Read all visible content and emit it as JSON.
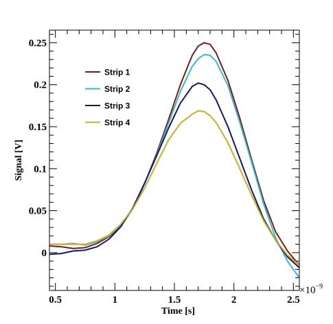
{
  "chart_data": {
    "type": "line",
    "xlabel": "Time [s]",
    "ylabel": "Signal [V]",
    "x_exponent_base": "×10",
    "x_exponent_power": "−9",
    "xlim": [
      0.45,
      2.55
    ],
    "ylim": [
      -0.045,
      0.265
    ],
    "x_ticks": [
      0.5,
      1,
      1.5,
      2,
      2.5
    ],
    "x_tick_labels": [
      "0.5",
      "1",
      "1.5",
      "2",
      "2.5"
    ],
    "y_ticks": [
      0,
      0.05,
      0.1,
      0.15,
      0.2,
      0.25
    ],
    "y_tick_labels": [
      "0",
      "0.05",
      "0.1",
      "0.15",
      "0.2",
      "0.25"
    ],
    "grid": false,
    "legend_position": "top-left",
    "x": [
      0.45,
      0.55,
      0.65,
      0.75,
      0.85,
      0.95,
      1.05,
      1.15,
      1.25,
      1.35,
      1.45,
      1.55,
      1.65,
      1.7,
      1.75,
      1.8,
      1.85,
      1.95,
      2.05,
      2.15,
      2.25,
      2.35,
      2.45,
      2.55
    ],
    "series": [
      {
        "name": "Strip 1",
        "color": "#7a1a1a",
        "values": [
          0.008,
          0.007,
          0.005,
          0.006,
          0.011,
          0.019,
          0.032,
          0.052,
          0.082,
          0.118,
          0.158,
          0.2,
          0.235,
          0.246,
          0.25,
          0.248,
          0.238,
          0.205,
          0.16,
          0.11,
          0.062,
          0.025,
          0.002,
          -0.015
        ]
      },
      {
        "name": "Strip 2",
        "color": "#36b8d0",
        "values": [
          0.01,
          0.01,
          0.011,
          0.009,
          0.013,
          0.02,
          0.033,
          0.053,
          0.082,
          0.116,
          0.154,
          0.192,
          0.222,
          0.231,
          0.236,
          0.235,
          0.228,
          0.199,
          0.155,
          0.107,
          0.058,
          0.018,
          -0.01,
          -0.03
        ]
      },
      {
        "name": "Strip 3",
        "color": "#141470",
        "values": [
          -0.002,
          -0.001,
          0.002,
          0.003,
          0.007,
          0.016,
          0.031,
          0.053,
          0.083,
          0.115,
          0.148,
          0.178,
          0.198,
          0.202,
          0.2,
          0.194,
          0.182,
          0.15,
          0.112,
          0.074,
          0.04,
          0.015,
          -0.005,
          -0.018
        ]
      },
      {
        "name": "Strip 4",
        "color": "#c8b020",
        "values": [
          0.01,
          0.01,
          0.01,
          0.01,
          0.014,
          0.021,
          0.034,
          0.052,
          0.077,
          0.106,
          0.134,
          0.154,
          0.165,
          0.169,
          0.168,
          0.163,
          0.155,
          0.131,
          0.1,
          0.068,
          0.038,
          0.015,
          -0.003,
          -0.015
        ]
      }
    ]
  }
}
